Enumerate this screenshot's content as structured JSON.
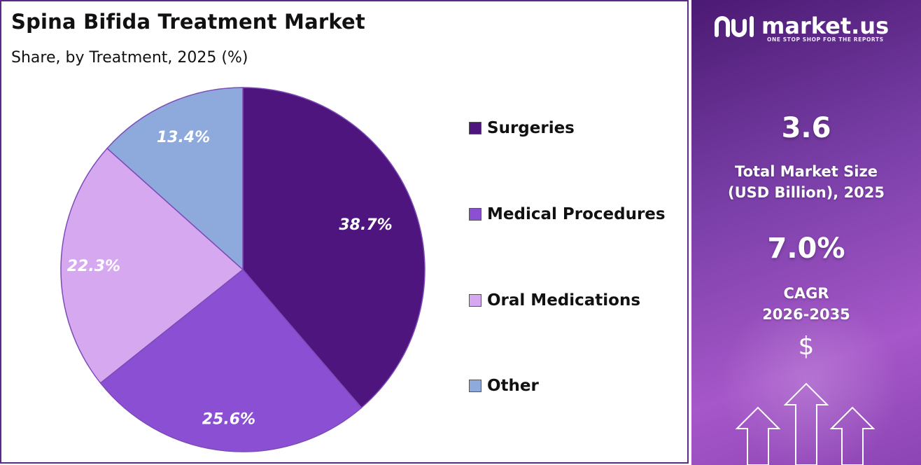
{
  "header": {
    "title": "Spina Bifida Treatment Market",
    "subtitle": "Share, by Treatment, 2025 (%)"
  },
  "chart_data": {
    "type": "pie",
    "title": "Spina Bifida Treatment Market",
    "subtitle": "Share, by Treatment, 2025 (%)",
    "categories": [
      "Surgeries",
      "Medical Procedures",
      "Oral Medications",
      "Other"
    ],
    "values": [
      38.7,
      25.6,
      22.3,
      13.4
    ],
    "labels": [
      "38.7%",
      "25.6%",
      "22.3%",
      "13.4%"
    ],
    "colors": [
      "#4e157f",
      "#8b4fd4",
      "#d5a8f0",
      "#8eaadd"
    ],
    "legend_position": "right",
    "start_angle": "12 o'clock, clockwise"
  },
  "sidebar": {
    "brand": "market.us",
    "tagline": "ONE STOP SHOP FOR THE REPORTS",
    "market_size_value": "3.6",
    "market_size_label_1": "Total Market Size",
    "market_size_label_2": "(USD Billion), 2025",
    "cagr_value": "7.0%",
    "cagr_label_1": "CAGR",
    "cagr_label_2": "2026-2035",
    "currency_symbol": "$"
  }
}
